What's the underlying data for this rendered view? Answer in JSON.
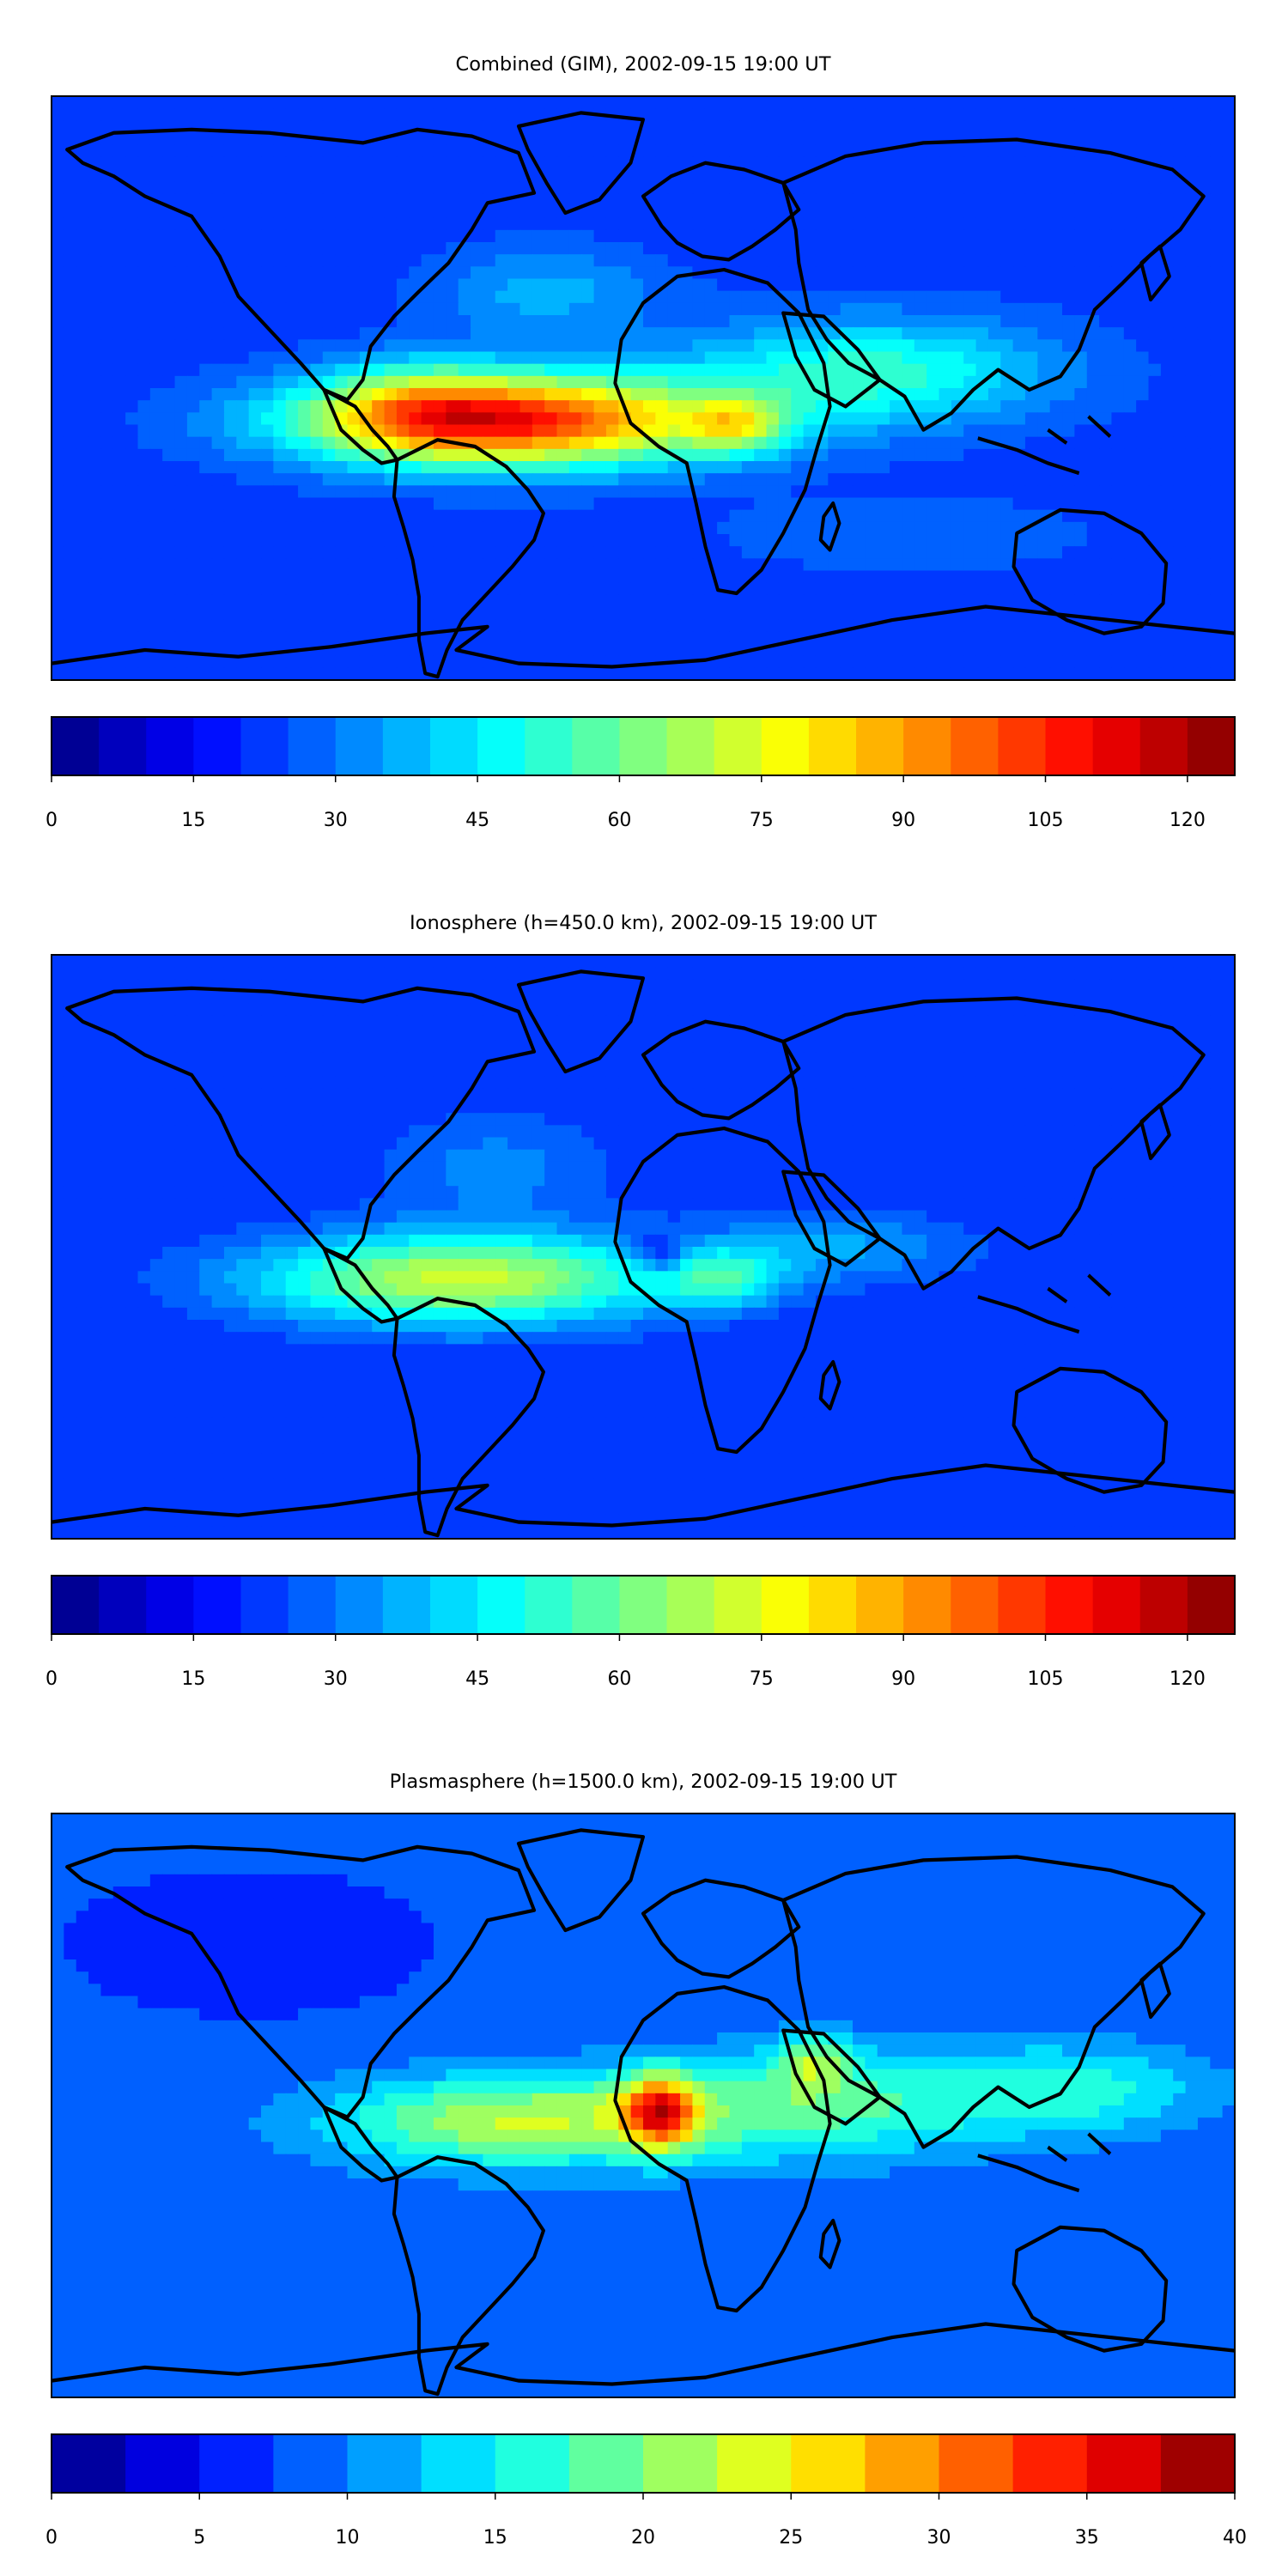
{
  "figure": {
    "panels": [
      {
        "title": "Combined (GIM), 2002-09-15 19:00 UT",
        "colorbar": {
          "min": 0,
          "max": 125,
          "levels": 25,
          "ticks": [
            "0",
            "15",
            "30",
            "45",
            "60",
            "75",
            "90",
            "105",
            "120"
          ],
          "tick_values": [
            0,
            15,
            30,
            45,
            60,
            75,
            90,
            105,
            120
          ]
        },
        "field": [
          {
            "lon": -40,
            "lat": -10,
            "amp": 85,
            "sx": 45,
            "sy": 10
          },
          {
            "lon": -70,
            "lat": -5,
            "amp": 20,
            "sx": 20,
            "sy": 10
          },
          {
            "lon": 28,
            "lat": -12,
            "amp": 30,
            "sx": 10,
            "sy": 6
          },
          {
            "lon": 70,
            "lat": 5,
            "amp": 30,
            "sx": 40,
            "sy": 12
          },
          {
            "lon": -30,
            "lat": 30,
            "amp": 15,
            "sx": 25,
            "sy": 10
          },
          {
            "lon": 80,
            "lat": -45,
            "amp": 8,
            "sx": 40,
            "sy": 8
          }
        ],
        "field_base": 22
      },
      {
        "title": "Ionosphere  (h=450.0 km), 2002-09-15 19:00 UT",
        "colorbar": {
          "min": 0,
          "max": 125,
          "levels": 25,
          "ticks": [
            "0",
            "15",
            "30",
            "45",
            "60",
            "75",
            "90",
            "105",
            "120"
          ],
          "tick_values": [
            0,
            15,
            30,
            45,
            60,
            75,
            90,
            105,
            120
          ]
        },
        "field": [
          {
            "lon": -55,
            "lat": -10,
            "amp": 52,
            "sx": 45,
            "sy": 10
          },
          {
            "lon": 25,
            "lat": -10,
            "amp": 25,
            "sx": 12,
            "sy": 6
          },
          {
            "lon": 5,
            "lat": -2,
            "amp": -18,
            "sx": 6,
            "sy": 4
          },
          {
            "lon": -45,
            "lat": 25,
            "amp": 12,
            "sx": 25,
            "sy": 12
          },
          {
            "lon": 60,
            "lat": 0,
            "amp": 15,
            "sx": 30,
            "sy": 8
          }
        ],
        "field_base": 20
      },
      {
        "title": "Plasmasphere (h=1500.0 km), 2002-09-15 19:00 UT",
        "colorbar": {
          "min": 0,
          "max": 40,
          "levels": 16,
          "ticks": [
            "0",
            "5",
            "10",
            "15",
            "20",
            "25",
            "30",
            "35",
            "40"
          ],
          "tick_values": [
            0,
            5,
            10,
            15,
            20,
            25,
            30,
            35,
            40
          ]
        },
        "field": [
          {
            "lon": 5,
            "lat": -2,
            "amp": 18,
            "sx": 8,
            "sy": 8
          },
          {
            "lon": -40,
            "lat": -5,
            "amp": 14,
            "sx": 40,
            "sy": 10
          },
          {
            "lon": 52,
            "lat": 14,
            "amp": 9,
            "sx": 8,
            "sy": 6
          },
          {
            "lon": 50,
            "lat": 0,
            "amp": 10,
            "sx": 40,
            "sy": 12
          },
          {
            "lon": 130,
            "lat": 5,
            "amp": 8,
            "sx": 30,
            "sy": 10
          },
          {
            "lon": -120,
            "lat": 50,
            "amp": -3,
            "sx": 30,
            "sy": 12
          }
        ],
        "field_base": 8
      }
    ],
    "colormap": "jet"
  }
}
